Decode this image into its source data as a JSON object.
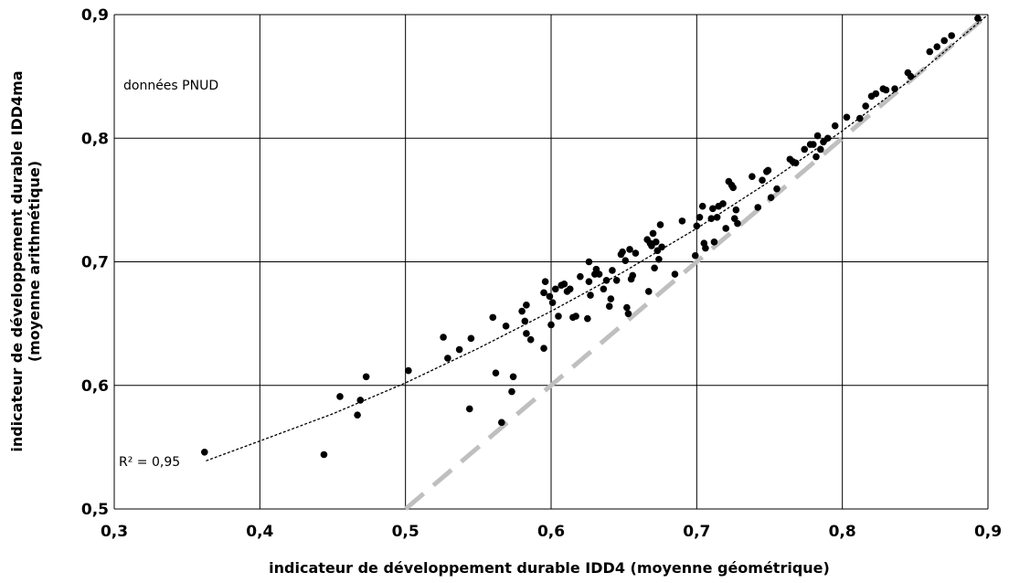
{
  "chart_data": {
    "type": "scatter",
    "xlabel": "indicateur de développement durable IDD4 (moyenne géométrique)",
    "ylabel_line1": "indicateur de développement durable IDD4ma",
    "ylabel_line2": "(moyenne arithmétique)",
    "annotation": "données PNUD",
    "r2_label": "R² = 0,95",
    "xlim": [
      0.3,
      0.9
    ],
    "ylim": [
      0.5,
      0.9
    ],
    "x_ticks": [
      0.3,
      0.4,
      0.5,
      0.6,
      0.7,
      0.8,
      0.9
    ],
    "x_tick_labels": [
      "0,3",
      "0,4",
      "0,5",
      "0,6",
      "0,7",
      "0,8",
      "0,9"
    ],
    "y_ticks": [
      0.5,
      0.6,
      0.7,
      0.8,
      0.9
    ],
    "y_tick_labels": [
      "0,5",
      "0,6",
      "0,7",
      "0,8",
      "0,9"
    ],
    "grid": true,
    "colors": {
      "points": "#000000",
      "trend": "#000000",
      "reference": "#bfbfbf",
      "grid": "#000000"
    },
    "reference_line": {
      "style": "dashed",
      "x": [
        0.5,
        0.9
      ],
      "y": [
        0.5,
        0.9
      ]
    },
    "trendline": {
      "style": "dotted",
      "x": [
        0.363,
        0.4,
        0.45,
        0.5,
        0.55,
        0.6,
        0.65,
        0.7,
        0.75,
        0.8,
        0.85,
        0.9
      ],
      "y": [
        0.539,
        0.555,
        0.577,
        0.602,
        0.63,
        0.66,
        0.692,
        0.727,
        0.765,
        0.806,
        0.85,
        0.9
      ]
    },
    "series": [
      {
        "points": [
          [
            0.362,
            0.546
          ],
          [
            0.444,
            0.544
          ],
          [
            0.455,
            0.591
          ],
          [
            0.467,
            0.576
          ],
          [
            0.469,
            0.588
          ],
          [
            0.473,
            0.607
          ],
          [
            0.502,
            0.612
          ],
          [
            0.526,
            0.639
          ],
          [
            0.529,
            0.622
          ],
          [
            0.537,
            0.629
          ],
          [
            0.544,
            0.581
          ],
          [
            0.545,
            0.638
          ],
          [
            0.56,
            0.655
          ],
          [
            0.562,
            0.61
          ],
          [
            0.566,
            0.57
          ],
          [
            0.569,
            0.648
          ],
          [
            0.573,
            0.595
          ],
          [
            0.574,
            0.607
          ],
          [
            0.58,
            0.66
          ],
          [
            0.582,
            0.652
          ],
          [
            0.583,
            0.665
          ],
          [
            0.583,
            0.642
          ],
          [
            0.586,
            0.637
          ],
          [
            0.595,
            0.63
          ],
          [
            0.595,
            0.675
          ],
          [
            0.596,
            0.684
          ],
          [
            0.599,
            0.672
          ],
          [
            0.6,
            0.649
          ],
          [
            0.601,
            0.667
          ],
          [
            0.603,
            0.678
          ],
          [
            0.605,
            0.656
          ],
          [
            0.607,
            0.681
          ],
          [
            0.609,
            0.682
          ],
          [
            0.611,
            0.676
          ],
          [
            0.613,
            0.678
          ],
          [
            0.615,
            0.655
          ],
          [
            0.617,
            0.656
          ],
          [
            0.62,
            0.688
          ],
          [
            0.625,
            0.654
          ],
          [
            0.626,
            0.684
          ],
          [
            0.626,
            0.7
          ],
          [
            0.627,
            0.673
          ],
          [
            0.63,
            0.69
          ],
          [
            0.631,
            0.694
          ],
          [
            0.633,
            0.69
          ],
          [
            0.636,
            0.678
          ],
          [
            0.638,
            0.685
          ],
          [
            0.64,
            0.664
          ],
          [
            0.641,
            0.67
          ],
          [
            0.642,
            0.693
          ],
          [
            0.645,
            0.685
          ],
          [
            0.648,
            0.706
          ],
          [
            0.649,
            0.708
          ],
          [
            0.651,
            0.701
          ],
          [
            0.652,
            0.663
          ],
          [
            0.653,
            0.658
          ],
          [
            0.654,
            0.71
          ],
          [
            0.655,
            0.686
          ],
          [
            0.656,
            0.689
          ],
          [
            0.658,
            0.707
          ],
          [
            0.666,
            0.718
          ],
          [
            0.667,
            0.676
          ],
          [
            0.668,
            0.715
          ],
          [
            0.669,
            0.713
          ],
          [
            0.67,
            0.723
          ],
          [
            0.671,
            0.695
          ],
          [
            0.672,
            0.716
          ],
          [
            0.673,
            0.709
          ],
          [
            0.674,
            0.702
          ],
          [
            0.675,
            0.73
          ],
          [
            0.676,
            0.712
          ],
          [
            0.685,
            0.69
          ],
          [
            0.69,
            0.733
          ],
          [
            0.699,
            0.705
          ],
          [
            0.7,
            0.729
          ],
          [
            0.702,
            0.736
          ],
          [
            0.704,
            0.745
          ],
          [
            0.705,
            0.715
          ],
          [
            0.706,
            0.711
          ],
          [
            0.71,
            0.735
          ],
          [
            0.711,
            0.743
          ],
          [
            0.712,
            0.716
          ],
          [
            0.714,
            0.736
          ],
          [
            0.715,
            0.745
          ],
          [
            0.718,
            0.747
          ],
          [
            0.72,
            0.727
          ],
          [
            0.722,
            0.765
          ],
          [
            0.724,
            0.762
          ],
          [
            0.725,
            0.76
          ],
          [
            0.726,
            0.735
          ],
          [
            0.727,
            0.742
          ],
          [
            0.728,
            0.731
          ],
          [
            0.738,
            0.769
          ],
          [
            0.742,
            0.744
          ],
          [
            0.745,
            0.766
          ],
          [
            0.748,
            0.773
          ],
          [
            0.749,
            0.774
          ],
          [
            0.751,
            0.752
          ],
          [
            0.755,
            0.759
          ],
          [
            0.764,
            0.783
          ],
          [
            0.766,
            0.781
          ],
          [
            0.768,
            0.78
          ],
          [
            0.774,
            0.791
          ],
          [
            0.778,
            0.795
          ],
          [
            0.78,
            0.795
          ],
          [
            0.782,
            0.785
          ],
          [
            0.783,
            0.802
          ],
          [
            0.785,
            0.791
          ],
          [
            0.787,
            0.797
          ],
          [
            0.79,
            0.8
          ],
          [
            0.795,
            0.81
          ],
          [
            0.803,
            0.817
          ],
          [
            0.812,
            0.816
          ],
          [
            0.816,
            0.826
          ],
          [
            0.82,
            0.834
          ],
          [
            0.823,
            0.836
          ],
          [
            0.828,
            0.84
          ],
          [
            0.83,
            0.839
          ],
          [
            0.836,
            0.84
          ],
          [
            0.845,
            0.853
          ],
          [
            0.847,
            0.85
          ],
          [
            0.86,
            0.87
          ],
          [
            0.865,
            0.874
          ],
          [
            0.87,
            0.879
          ],
          [
            0.875,
            0.883
          ],
          [
            0.893,
            0.897
          ]
        ]
      }
    ]
  }
}
